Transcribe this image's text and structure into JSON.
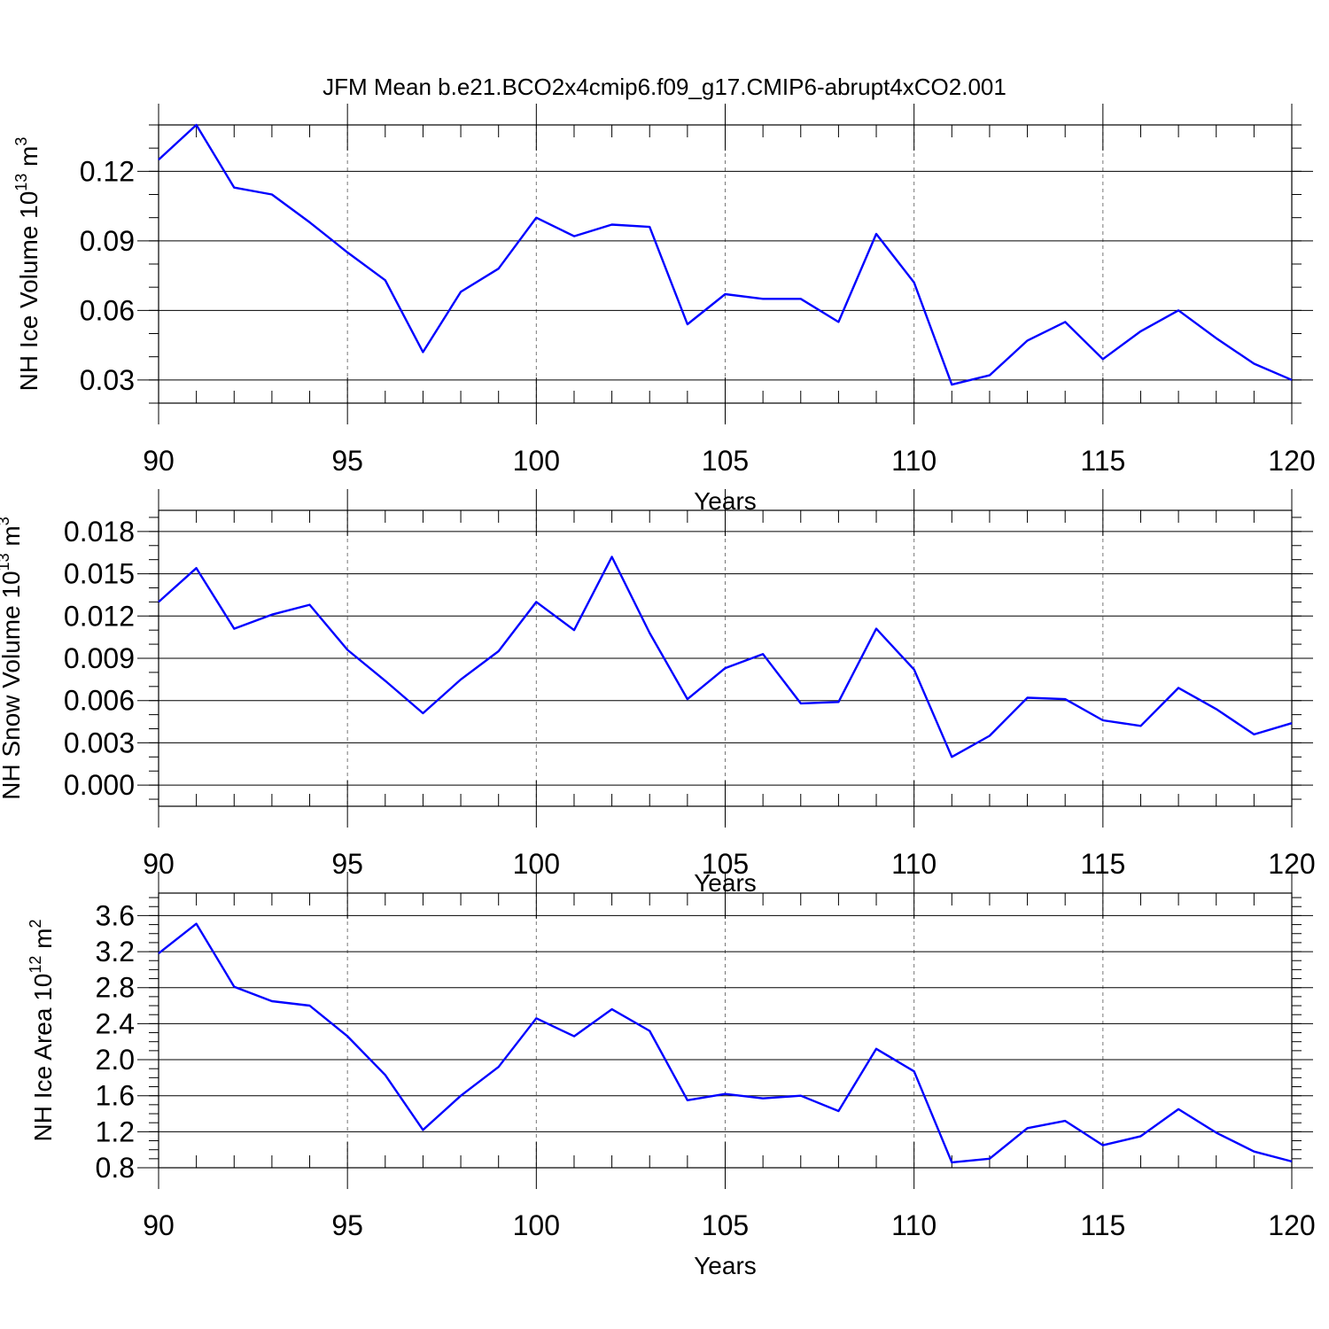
{
  "title": "JFM Mean b.e21.BCO2x4cmip6.f09_g17.CMIP6-abrupt4xCO2.001",
  "chart_data": [
    {
      "type": "line",
      "xlabel": "Years",
      "ylabel": "NH Ice Volume 10",
      "ylabel_exp": "13",
      "ylabel_unit": " m",
      "ylabel_unit_exp": "3",
      "x": [
        90,
        91,
        92,
        93,
        94,
        95,
        96,
        97,
        98,
        99,
        100,
        101,
        102,
        103,
        104,
        105,
        106,
        107,
        108,
        109,
        110,
        111,
        112,
        113,
        114,
        115,
        116,
        117,
        118,
        119,
        120
      ],
      "series": [
        {
          "color": "#0000ff",
          "values": [
            0.125,
            0.14,
            0.113,
            0.11,
            0.098,
            0.085,
            0.073,
            0.042,
            0.068,
            0.078,
            0.1,
            0.092,
            0.097,
            0.096,
            0.054,
            0.067,
            0.065,
            0.065,
            0.055,
            0.093,
            0.072,
            0.028,
            0.032,
            0.047,
            0.055,
            0.039,
            0.051,
            0.06,
            0.048,
            0.037,
            0.03
          ]
        }
      ],
      "xlim": [
        90,
        120
      ],
      "ylim": [
        0.02,
        0.14
      ],
      "xticks": [
        90,
        95,
        100,
        105,
        110,
        115,
        120
      ],
      "xtick_labels": [
        "90",
        "95",
        "100",
        "105",
        "110",
        "115",
        "120"
      ],
      "yticks": [
        0.03,
        0.06,
        0.09,
        0.12
      ],
      "ytick_labels": [
        "0.03",
        "0.06",
        "0.09",
        "0.12"
      ],
      "y_minor_step": 0.01,
      "vgrid": "dashed, at major x ticks"
    },
    {
      "type": "line",
      "xlabel": "Years",
      "ylabel": "NH Snow Volume 10",
      "ylabel_exp": "13",
      "ylabel_unit": " m",
      "ylabel_unit_exp": "3",
      "x": [
        90,
        91,
        92,
        93,
        94,
        95,
        96,
        97,
        98,
        99,
        100,
        101,
        102,
        103,
        104,
        105,
        106,
        107,
        108,
        109,
        110,
        111,
        112,
        113,
        114,
        115,
        116,
        117,
        118,
        119,
        120
      ],
      "series": [
        {
          "color": "#0000ff",
          "values": [
            0.013,
            0.0154,
            0.0111,
            0.0121,
            0.0128,
            0.0096,
            0.0074,
            0.0051,
            0.0075,
            0.0095,
            0.013,
            0.011,
            0.0162,
            0.0108,
            0.0061,
            0.0083,
            0.0093,
            0.0058,
            0.0059,
            0.0111,
            0.0082,
            0.002,
            0.0035,
            0.0062,
            0.0061,
            0.0046,
            0.0042,
            0.0069,
            0.0054,
            0.0036,
            0.0044
          ]
        }
      ],
      "xlim": [
        90,
        120
      ],
      "ylim": [
        -0.0015,
        0.0195
      ],
      "xticks": [
        90,
        95,
        100,
        105,
        110,
        115,
        120
      ],
      "xtick_labels": [
        "90",
        "95",
        "100",
        "105",
        "110",
        "115",
        "120"
      ],
      "yticks": [
        0.0,
        0.003,
        0.006,
        0.009,
        0.012,
        0.015,
        0.018
      ],
      "ytick_labels": [
        "0.000",
        "0.003",
        "0.006",
        "0.009",
        "0.012",
        "0.015",
        "0.018"
      ],
      "y_minor_step": 0.001,
      "vgrid": "dashed, at major x ticks"
    },
    {
      "type": "line",
      "xlabel": "Years",
      "ylabel": "NH Ice Area 10",
      "ylabel_exp": "12",
      "ylabel_unit": " m",
      "ylabel_unit_exp": "2",
      "x": [
        90,
        91,
        92,
        93,
        94,
        95,
        96,
        97,
        98,
        99,
        100,
        101,
        102,
        103,
        104,
        105,
        106,
        107,
        108,
        109,
        110,
        111,
        112,
        113,
        114,
        115,
        116,
        117,
        118,
        119,
        120
      ],
      "series": [
        {
          "color": "#0000ff",
          "values": [
            3.18,
            3.51,
            2.81,
            2.65,
            2.6,
            2.26,
            1.83,
            1.22,
            1.6,
            1.92,
            2.46,
            2.26,
            2.56,
            2.32,
            1.55,
            1.62,
            1.57,
            1.6,
            1.43,
            2.12,
            1.87,
            0.86,
            0.9,
            1.24,
            1.32,
            1.05,
            1.15,
            1.45,
            1.19,
            0.98,
            0.87
          ]
        }
      ],
      "xlim": [
        90,
        120
      ],
      "ylim": [
        0.8,
        3.85
      ],
      "xticks": [
        90,
        95,
        100,
        105,
        110,
        115,
        120
      ],
      "xtick_labels": [
        "90",
        "95",
        "100",
        "105",
        "110",
        "115",
        "120"
      ],
      "yticks": [
        0.8,
        1.2,
        1.6,
        2.0,
        2.4,
        2.8,
        3.2,
        3.6
      ],
      "ytick_labels": [
        "0.8",
        "1.2",
        "1.6",
        "2.0",
        "2.4",
        "2.8",
        "3.2",
        "3.6"
      ],
      "y_minor_step": 0.1,
      "vgrid": "dashed, at major x ticks"
    }
  ]
}
